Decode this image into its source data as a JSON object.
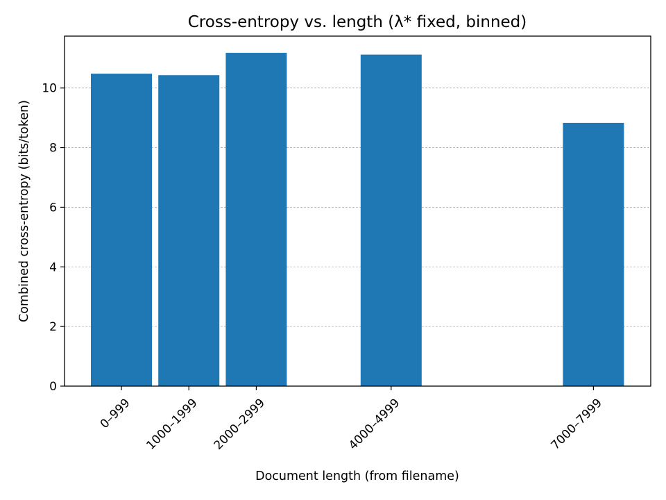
{
  "chart_data": {
    "type": "bar",
    "title": "Cross-entropy vs. length (λ* fixed, binned)",
    "xlabel": "Document length (from filename)",
    "ylabel": "Combined cross-entropy (bits/token)",
    "categories": [
      "0–999",
      "1000–1999",
      "2000–2999",
      "4000–4999",
      "7000–7999"
    ],
    "bin_index": [
      0,
      1,
      2,
      4,
      7
    ],
    "values": [
      10.48,
      10.43,
      11.18,
      11.12,
      8.83
    ],
    "ylim": [
      0,
      11.74
    ],
    "yticks": [
      0,
      2,
      4,
      6,
      8,
      10
    ],
    "grid": "y-dashed",
    "bar_color": "#1f77b4"
  }
}
